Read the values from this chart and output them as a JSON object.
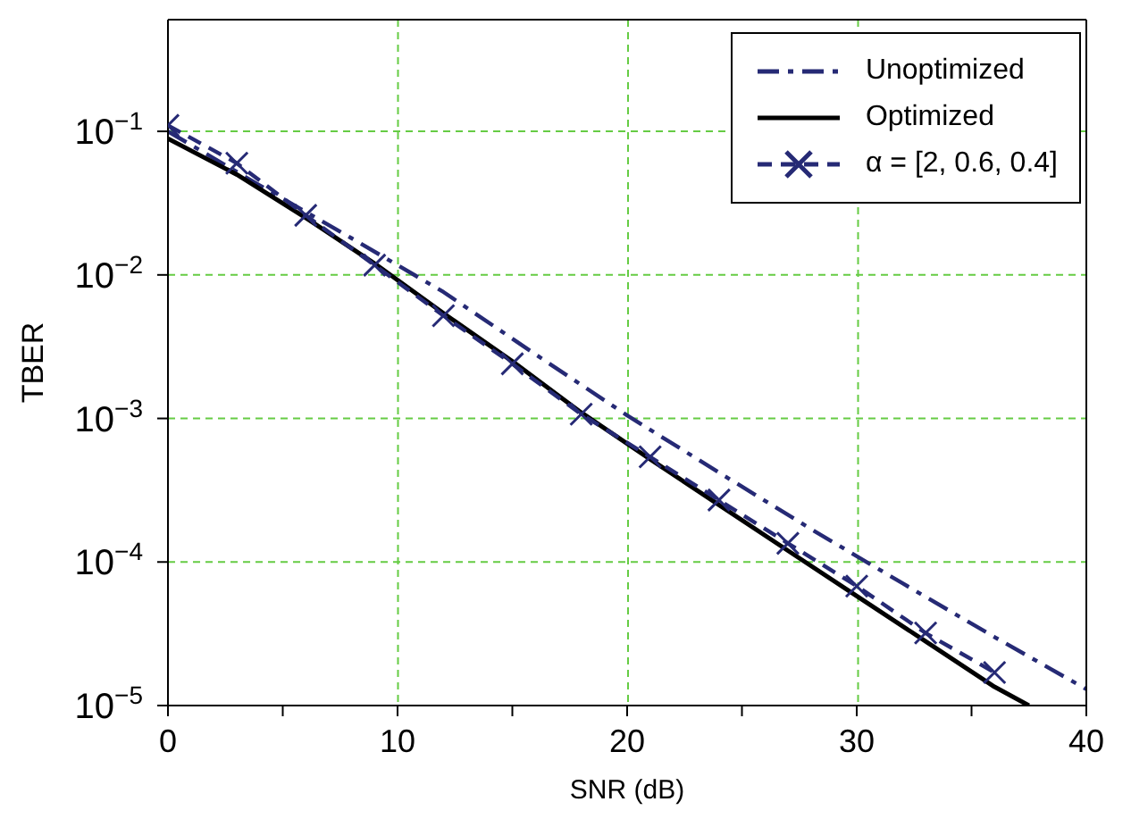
{
  "chart_data": {
    "type": "line",
    "xlabel": "SNR (dB)",
    "ylabel": "TBER",
    "log": "y",
    "grid": true,
    "legend": "top right",
    "xlim": [
      0,
      40
    ],
    "xticks": [
      0,
      {
        "value": 5,
        "label": null
      },
      10,
      {
        "value": 15,
        "label": null
      },
      20,
      {
        "value": 25,
        "label": null
      },
      30,
      {
        "value": 35,
        "label": null
      },
      40
    ],
    "ylim": [
      1e-05,
      0.6
    ],
    "yticks": [
      {
        "value": 0.1,
        "label": "10$^{−1}$"
      },
      {
        "value": 0.01,
        "label": "10$^{−2}$"
      },
      {
        "value": 0.001,
        "label": "10$^{−3}$"
      },
      {
        "value": 0.0001,
        "label": "10$^{−4}$"
      },
      {
        "value": 1e-05,
        "label": "10$^{−5}$"
      }
    ],
    "series": [
      {
        "name": "Unoptimized",
        "color": "#262a75",
        "line_style": "dashdot",
        "marker": "none",
        "x": [
          0,
          4,
          8,
          12,
          16,
          20,
          24,
          28,
          32,
          36,
          40
        ],
        "values": [
          0.1,
          0.042,
          0.018,
          0.0076,
          0.0028,
          0.00105,
          0.00042,
          0.00017,
          7.1e-05,
          3e-05,
          1.3e-05
        ]
      },
      {
        "name": "Optimized",
        "color": "#000000",
        "line_style": "solid",
        "marker": "none",
        "x": [
          0,
          3,
          6,
          9,
          12,
          15,
          18,
          21,
          24,
          27,
          30,
          33,
          36,
          37.5
        ],
        "values": [
          0.089,
          0.05,
          0.025,
          0.012,
          0.0054,
          0.0025,
          0.0011,
          0.00052,
          0.00025,
          0.00012,
          5.8e-05,
          2.8e-05,
          1.35e-05,
          1e-05
        ]
      },
      {
        "name": "α = [2, 0.6, 0.4]",
        "color": "#262a75",
        "line_style": "dashed",
        "marker": "cross",
        "x": [
          0,
          3,
          6,
          9,
          12,
          15,
          18,
          21,
          24,
          27,
          30,
          33,
          36
        ],
        "values": [
          0.11,
          0.06,
          0.026,
          0.0117,
          0.0052,
          0.0024,
          0.00107,
          0.00054,
          0.00027,
          0.000135,
          6.8e-05,
          3.2e-05,
          1.7e-05
        ]
      }
    ]
  }
}
